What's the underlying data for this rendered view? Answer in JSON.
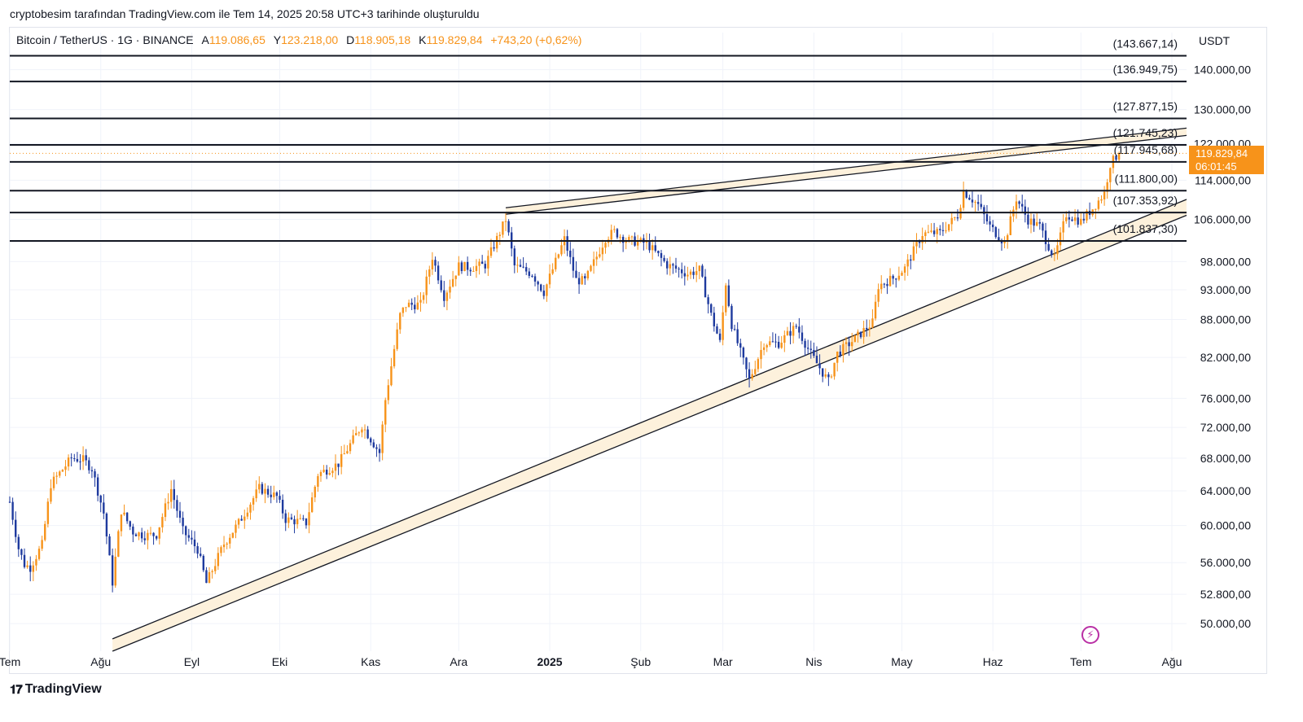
{
  "caption": "cryptobesim tarafından TradingView.com ile Tem 14, 2025 20:58 UTC+3 tarihinde oluşturuldu",
  "header": {
    "symbol": "Bitcoin / TetherUS · 1G · BINANCE",
    "open_label": "A",
    "open": "119.086,65",
    "high_label": "Y",
    "high": "123.218,00",
    "low_label": "D",
    "low": "118.905,18",
    "close_label": "K",
    "close": "119.829,84",
    "change": "+743,20 (+0,62%)"
  },
  "currency": "USDT",
  "price_badge": {
    "price": "119.829,84",
    "countdown": "06:01:45"
  },
  "footer": {
    "brand": "TradingView",
    "logo_icon": "tradingview-logo-icon"
  },
  "colors": {
    "up": "#f7931a",
    "down": "#1e3a9e",
    "line": "#131722",
    "band": "#fdf1dc",
    "badge": "#f7931a"
  },
  "chart_data": {
    "type": "candlestick",
    "scale": "log",
    "symbol": "BTCUSDT",
    "timeframe": "1D",
    "ylim": [
      47500,
      150000
    ],
    "x_range": [
      "2024-07-01",
      "2025-08-06"
    ],
    "y_ticks": [
      140000,
      130000,
      122000,
      114000,
      106000,
      98000,
      93000,
      88000,
      82000,
      76000,
      72000,
      68000,
      64000,
      60000,
      56000,
      52800,
      50000
    ],
    "y_tick_labels": [
      "140.000,00",
      "130.000,00",
      "122.000,00",
      "114.000,00",
      "106.000,00",
      "98.000,00",
      "93.000,00",
      "88.000,00",
      "82.000,00",
      "76.000,00",
      "72.000,00",
      "68.000,00",
      "64.000,00",
      "60.000,00",
      "56.000,00",
      "52.800,00",
      "50.000,00"
    ],
    "x_ticks": [
      {
        "label": "Tem",
        "date": "2024-07-01",
        "bold": false
      },
      {
        "label": "Ağu",
        "date": "2024-08-01",
        "bold": false
      },
      {
        "label": "Eyl",
        "date": "2024-09-01",
        "bold": false
      },
      {
        "label": "Eki",
        "date": "2024-10-01",
        "bold": false
      },
      {
        "label": "Kas",
        "date": "2024-11-01",
        "bold": false
      },
      {
        "label": "Ara",
        "date": "2024-12-01",
        "bold": false
      },
      {
        "label": "2025",
        "date": "2025-01-01",
        "bold": true
      },
      {
        "label": "Şub",
        "date": "2025-02-01",
        "bold": false
      },
      {
        "label": "Mar",
        "date": "2025-03-01",
        "bold": false
      },
      {
        "label": "Nis",
        "date": "2025-04-01",
        "bold": false
      },
      {
        "label": "May",
        "date": "2025-05-01",
        "bold": false
      },
      {
        "label": "Haz",
        "date": "2025-06-01",
        "bold": false
      },
      {
        "label": "Tem",
        "date": "2025-07-01",
        "bold": false
      },
      {
        "label": "Ağu",
        "date": "2025-08-01",
        "bold": false
      }
    ],
    "horizontal_levels": [
      {
        "value": 143667.14,
        "label": "(143.667,14)"
      },
      {
        "value": 136949.75,
        "label": "(136.949,75)"
      },
      {
        "value": 127877.15,
        "label": "(127.877,15)"
      },
      {
        "value": 121745.23,
        "label": "(121.745,23)"
      },
      {
        "value": 117945.68,
        "label": "(117.945,68)"
      },
      {
        "value": 111800.0,
        "label": "(111.800,00)"
      },
      {
        "value": 107353.92,
        "label": "(107.353,92)"
      },
      {
        "value": 101837.3,
        "label": "(101.837,30)"
      }
    ],
    "last_price": 119829.84,
    "resistance_band": {
      "from_date": "2024-12-17",
      "to_date": "2025-08-06",
      "upper": [
        108300,
        125600
      ],
      "lower": [
        107000,
        123900
      ]
    },
    "support_band": {
      "from_date": "2024-08-05",
      "to_date": "2025-08-06",
      "upper": [
        48600,
        110000
      ],
      "lower": [
        47500,
        106800
      ]
    },
    "price_path": [
      [
        "2024-07-01",
        62700
      ],
      [
        "2024-07-04",
        57500
      ],
      [
        "2024-07-06",
        55800
      ],
      [
        "2024-07-08",
        55500
      ],
      [
        "2024-07-12",
        57900
      ],
      [
        "2024-07-15",
        64800
      ],
      [
        "2024-07-19",
        66600
      ],
      [
        "2024-07-22",
        68000
      ],
      [
        "2024-07-26",
        67800
      ],
      [
        "2024-07-29",
        66700
      ],
      [
        "2024-08-02",
        61400
      ],
      [
        "2024-08-05",
        54000
      ],
      [
        "2024-08-08",
        61700
      ],
      [
        "2024-08-12",
        59300
      ],
      [
        "2024-08-16",
        58900
      ],
      [
        "2024-08-20",
        59000
      ],
      [
        "2024-08-25",
        64200
      ],
      [
        "2024-08-29",
        59400
      ],
      [
        "2024-09-03",
        57400
      ],
      [
        "2024-09-06",
        53900
      ],
      [
        "2024-09-12",
        58000
      ],
      [
        "2024-09-17",
        60300
      ],
      [
        "2024-09-24",
        64300
      ],
      [
        "2024-09-30",
        63300
      ],
      [
        "2024-10-03",
        60700
      ],
      [
        "2024-10-10",
        60300
      ],
      [
        "2024-10-14",
        66000
      ],
      [
        "2024-10-21",
        67300
      ],
      [
        "2024-10-29",
        72300
      ],
      [
        "2024-11-04",
        68700
      ],
      [
        "2024-11-06",
        75800
      ],
      [
        "2024-11-11",
        88700
      ],
      [
        "2024-11-13",
        90400
      ],
      [
        "2024-11-18",
        90500
      ],
      [
        "2024-11-22",
        98900
      ],
      [
        "2024-11-26",
        91900
      ],
      [
        "2024-12-01",
        97200
      ],
      [
        "2024-12-05",
        96900
      ],
      [
        "2024-12-10",
        97400
      ],
      [
        "2024-12-17",
        106000
      ],
      [
        "2024-12-20",
        97200
      ],
      [
        "2024-12-26",
        95800
      ],
      [
        "2024-12-30",
        92600
      ],
      [
        "2025-01-06",
        102200
      ],
      [
        "2025-01-10",
        94700
      ],
      [
        "2025-01-13",
        94500
      ],
      [
        "2025-01-20",
        102400
      ],
      [
        "2025-01-23",
        103600
      ],
      [
        "2025-01-27",
        102000
      ],
      [
        "2025-02-03",
        101400
      ],
      [
        "2025-02-10",
        97400
      ],
      [
        "2025-02-17",
        95800
      ],
      [
        "2025-02-21",
        96500
      ],
      [
        "2025-02-25",
        88700
      ],
      [
        "2025-02-28",
        84300
      ],
      [
        "2025-03-02",
        94200
      ],
      [
        "2025-03-04",
        87200
      ],
      [
        "2025-03-10",
        78600
      ],
      [
        "2025-03-15",
        84300
      ],
      [
        "2025-03-20",
        84200
      ],
      [
        "2025-03-26",
        86900
      ],
      [
        "2025-03-31",
        82500
      ],
      [
        "2025-04-06",
        78400
      ],
      [
        "2025-04-09",
        82600
      ],
      [
        "2025-04-14",
        84500
      ],
      [
        "2025-04-21",
        87500
      ],
      [
        "2025-04-23",
        93700
      ],
      [
        "2025-04-28",
        95000
      ],
      [
        "2025-05-02",
        96800
      ],
      [
        "2025-05-08",
        103200
      ],
      [
        "2025-05-14",
        103400
      ],
      [
        "2025-05-20",
        106800
      ],
      [
        "2025-05-22",
        111700
      ],
      [
        "2025-05-27",
        108900
      ],
      [
        "2025-05-31",
        104600
      ],
      [
        "2025-06-05",
        101500
      ],
      [
        "2025-06-09",
        110200
      ],
      [
        "2025-06-13",
        105900
      ],
      [
        "2025-06-17",
        104600
      ],
      [
        "2025-06-22",
        98500
      ],
      [
        "2025-06-26",
        107000
      ],
      [
        "2025-07-01",
        105600
      ],
      [
        "2025-07-05",
        108200
      ],
      [
        "2025-07-09",
        111300
      ],
      [
        "2025-07-11",
        117500
      ],
      [
        "2025-07-13",
        119100
      ],
      [
        "2025-07-14",
        119829.84
      ]
    ]
  }
}
